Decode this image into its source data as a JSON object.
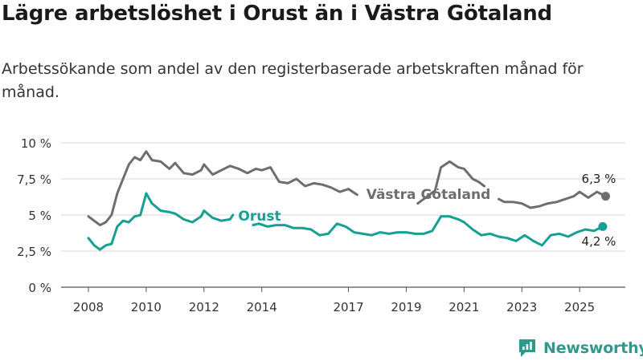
{
  "title": "Lägre arbetslöshet i Orust än i Västra Götaland",
  "subtitle": "Arbetssökande som andel av den registerbaserade arbetskraften månad för månad.",
  "brand": {
    "name": "Newsworthy"
  },
  "colors": {
    "orust": "#16a092",
    "vg": "#6e6e70",
    "grid": "#d9d9d9",
    "text": "#333333"
  },
  "chart_data": {
    "type": "line",
    "title": "Lägre arbetslöshet i Orust än i Västra Götaland",
    "xlabel": "",
    "ylabel": "",
    "xlim": [
      2008,
      2026
    ],
    "ylim": [
      0,
      10
    ],
    "y_ticks": [
      0,
      2.5,
      5,
      7.5,
      10
    ],
    "y_tick_labels": [
      "0 %",
      "2,5 %",
      "5 %",
      "7,5 %",
      "10 %"
    ],
    "x_ticks": [
      2008,
      2010,
      2012,
      2014,
      2017,
      2019,
      2021,
      2023,
      2025
    ],
    "x_tick_labels": [
      "2008",
      "2010",
      "2012",
      "2014",
      "2017",
      "2019",
      "2021",
      "2023",
      "2025"
    ],
    "grid": true,
    "series": [
      {
        "name": "Västra Götaland",
        "end_label": "6,3 %",
        "x": [
          2008.0,
          2008.2,
          2008.4,
          2008.6,
          2008.8,
          2009.0,
          2009.2,
          2009.4,
          2009.6,
          2009.8,
          2010.0,
          2010.2,
          2010.5,
          2010.8,
          2011.0,
          2011.3,
          2011.6,
          2011.9,
          2012.0,
          2012.3,
          2012.6,
          2012.9,
          2013.2,
          2013.5,
          2013.8,
          2014.0,
          2014.3,
          2014.6,
          2014.9,
          2015.2,
          2015.5,
          2015.8,
          2016.1,
          2016.4,
          2016.7,
          2017.0,
          2017.3,
          2019.4,
          2019.6,
          2019.8,
          2020.0,
          2020.2,
          2020.5,
          2020.8,
          2021.0,
          2021.3,
          2021.5,
          2021.7,
          2022.2,
          2022.4,
          2022.7,
          2023.0,
          2023.3,
          2023.6,
          2023.9,
          2024.2,
          2024.5,
          2024.8,
          2025.0,
          2025.3,
          2025.6,
          2025.9
        ],
        "y": [
          4.9,
          4.6,
          4.3,
          4.5,
          5.0,
          6.5,
          7.5,
          8.5,
          9.0,
          8.8,
          9.4,
          8.8,
          8.7,
          8.2,
          8.6,
          7.9,
          7.8,
          8.1,
          8.5,
          7.8,
          8.1,
          8.4,
          8.2,
          7.9,
          8.2,
          8.1,
          8.3,
          7.3,
          7.2,
          7.5,
          7.0,
          7.2,
          7.1,
          6.9,
          6.6,
          6.8,
          6.4,
          5.8,
          6.1,
          6.4,
          6.7,
          8.3,
          8.7,
          8.3,
          8.2,
          7.5,
          7.3,
          7.0,
          6.1,
          5.9,
          5.9,
          5.8,
          5.5,
          5.6,
          5.8,
          5.9,
          6.1,
          6.3,
          6.6,
          6.2,
          6.6,
          6.3
        ],
        "gaps": [
          [
            2017.3,
            2019.4
          ],
          [
            2021.7,
            2022.2
          ]
        ]
      },
      {
        "name": "Orust",
        "end_label": "4,2 %",
        "x": [
          2008.0,
          2008.2,
          2008.4,
          2008.6,
          2008.8,
          2009.0,
          2009.2,
          2009.4,
          2009.6,
          2009.8,
          2010.0,
          2010.2,
          2010.5,
          2010.8,
          2011.0,
          2011.3,
          2011.6,
          2011.9,
          2012.0,
          2012.3,
          2012.6,
          2012.9,
          2013.0,
          2013.7,
          2013.9,
          2014.2,
          2014.5,
          2014.8,
          2015.1,
          2015.4,
          2015.7,
          2016.0,
          2016.3,
          2016.6,
          2016.9,
          2017.2,
          2017.5,
          2017.8,
          2018.1,
          2018.4,
          2018.7,
          2019.0,
          2019.3,
          2019.6,
          2019.9,
          2020.2,
          2020.5,
          2020.8,
          2021.0,
          2021.3,
          2021.6,
          2021.9,
          2022.2,
          2022.5,
          2022.8,
          2023.1,
          2023.4,
          2023.7,
          2024.0,
          2024.3,
          2024.6,
          2024.9,
          2025.2,
          2025.5,
          2025.8
        ],
        "y": [
          3.4,
          2.9,
          2.6,
          2.9,
          3.0,
          4.2,
          4.6,
          4.5,
          4.9,
          5.0,
          6.5,
          5.8,
          5.3,
          5.2,
          5.1,
          4.7,
          4.5,
          4.9,
          5.3,
          4.8,
          4.6,
          4.7,
          5.0,
          4.3,
          4.4,
          4.2,
          4.3,
          4.3,
          4.1,
          4.1,
          4.0,
          3.6,
          3.7,
          4.4,
          4.2,
          3.8,
          3.7,
          3.6,
          3.8,
          3.7,
          3.8,
          3.8,
          3.7,
          3.7,
          3.9,
          4.9,
          4.9,
          4.7,
          4.5,
          4.0,
          3.6,
          3.7,
          3.5,
          3.4,
          3.2,
          3.6,
          3.2,
          2.9,
          3.6,
          3.7,
          3.5,
          3.8,
          4.0,
          3.9,
          4.2
        ],
        "gaps": [
          [
            2013.0,
            2013.7
          ]
        ]
      }
    ],
    "annotations": [
      {
        "text": "Västra Götaland",
        "series": "Västra Götaland"
      },
      {
        "text": "Orust",
        "series": "Orust"
      }
    ]
  }
}
